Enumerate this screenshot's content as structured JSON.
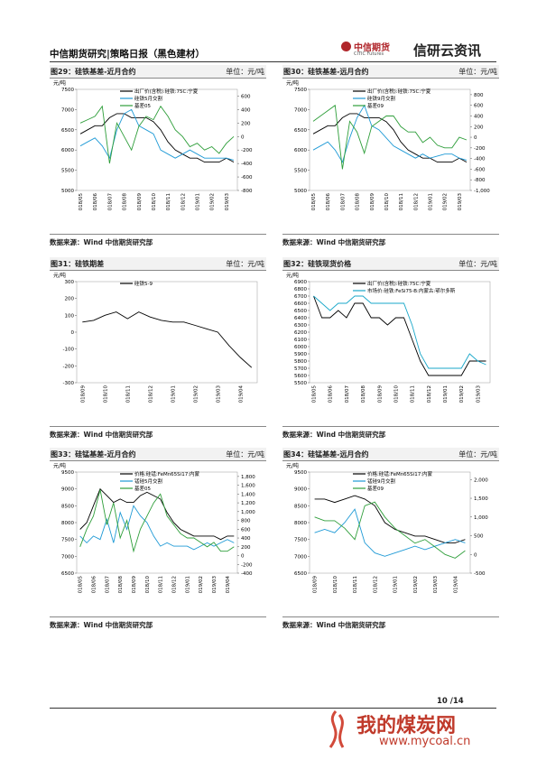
{
  "header": {
    "title": "中信期货研究|策略日报（黑色建材）",
    "logo": "中信期货",
    "logo_en": "CITIC Futures",
    "brand": "信研云资讯"
  },
  "footer": {
    "page": "10 /14"
  },
  "watermark": {
    "name": "我的煤炭网",
    "url": "www.mycoal.cn"
  },
  "chart_data": [
    {
      "type": "line",
      "title": "图29：硅铁基差-近月合约",
      "unit": "单位：元/吨",
      "y_label": "元/吨",
      "source": "数据来源：Wind  中信期货研究部",
      "categories": [
        "018/05",
        null,
        "018/06",
        null,
        "018/07",
        null,
        "018/08",
        null,
        "018/09",
        null,
        "018/10",
        null,
        "018/11",
        null,
        "018/12",
        null,
        "019/01",
        null,
        "019/02",
        null,
        "019/03",
        null
      ],
      "ylim": [
        5000,
        7500
      ],
      "yticks": [
        5000,
        5500,
        6000,
        6500,
        7000,
        7500
      ],
      "y2lim": [
        -800,
        700
      ],
      "y2ticks": [
        -800,
        -600,
        -400,
        -200,
        0,
        200,
        400,
        600
      ],
      "series": [
        {
          "name": "出厂价(含税):硅铁:75C:宁夏",
          "color": "#000000",
          "values": [
            6400,
            6500,
            6600,
            6600,
            6800,
            6900,
            6900,
            6800,
            6800,
            6800,
            6700,
            6500,
            6200,
            6000,
            5900,
            5800,
            5800,
            5700,
            5700,
            5700,
            5800,
            5700
          ]
        },
        {
          "name": "硅铁5月交割",
          "color": "#1f9ad6",
          "values": [
            6100,
            6200,
            6300,
            6100,
            5800,
            6500,
            6900,
            7000,
            6600,
            6500,
            6400,
            6000,
            5900,
            5800,
            5900,
            6000,
            5900,
            5800,
            5800,
            5800,
            5800,
            5750
          ]
        },
        {
          "name": "基差05",
          "color": "#2e9e3a",
          "axis": "y2",
          "values": [
            200,
            250,
            300,
            450,
            -400,
            200,
            0,
            -200,
            150,
            300,
            250,
            450,
            300,
            100,
            0,
            -150,
            -100,
            -200,
            -150,
            -250,
            -100,
            0
          ]
        }
      ]
    },
    {
      "type": "line",
      "title": "图30：硅铁基差-远月合约",
      "unit": "单位：元/吨",
      "y_label": "元/吨",
      "source": "数据来源：Wind  中信期货研究部",
      "categories": [
        "018/05",
        null,
        "018/06",
        null,
        "018/07",
        null,
        "018/08",
        null,
        "018/09",
        null,
        "018/10",
        null,
        "018/11",
        null,
        "018/12",
        null,
        "019/01",
        null,
        "019/02",
        null,
        "019/03",
        null
      ],
      "ylim": [
        5000,
        7500
      ],
      "yticks": [
        5000,
        5500,
        6000,
        6500,
        7000,
        7500
      ],
      "y2lim": [
        -1000,
        900
      ],
      "y2ticks": [
        {
          "value": -1000,
          "label": "-1,000"
        },
        -800,
        -600,
        -400,
        -200,
        0,
        200,
        400,
        600,
        800
      ],
      "series": [
        {
          "name": "出厂价(含税):硅铁:75C:宁夏",
          "color": "#000000",
          "values": [
            6400,
            6500,
            6600,
            6600,
            6800,
            6900,
            6900,
            6800,
            6800,
            6800,
            6700,
            6500,
            6200,
            6000,
            5900,
            5800,
            5800,
            5700,
            5700,
            5700,
            5800,
            5700
          ]
        },
        {
          "name": "硅铁9月交割",
          "color": "#1f9ad6",
          "values": [
            6000,
            6100,
            6200,
            6000,
            5700,
            6300,
            6800,
            7100,
            6600,
            6500,
            6300,
            6100,
            6000,
            5900,
            5800,
            5900,
            5800,
            5850,
            5900,
            5900,
            5800,
            5750
          ]
        },
        {
          "name": "基差09",
          "color": "#2e9e3a",
          "axis": "y2",
          "values": [
            300,
            400,
            500,
            600,
            -600,
            300,
            100,
            -300,
            200,
            300,
            400,
            400,
            200,
            100,
            100,
            -100,
            0,
            -150,
            -200,
            -200,
            0,
            -50
          ]
        }
      ]
    },
    {
      "type": "line",
      "title": "图31：硅铁期差",
      "unit": "单位：元/吨",
      "y_label": "元/吨",
      "source": "数据来源：Wind  中信期货研究部",
      "categories": [
        "018/09",
        null,
        "018/10",
        null,
        "018/11",
        null,
        "018/12",
        null,
        "019/01",
        null,
        "019/02",
        null,
        "019/03",
        null,
        "019/04",
        null
      ],
      "ylim": [
        -300,
        300
      ],
      "yticks": [
        -300,
        -200,
        -100,
        0,
        100,
        200,
        300
      ],
      "series": [
        {
          "name": "硅铁5-9",
          "color": "#000000",
          "values": [
            60,
            70,
            100,
            120,
            80,
            120,
            90,
            70,
            60,
            60,
            40,
            20,
            0,
            -80,
            -150,
            -210
          ]
        }
      ]
    },
    {
      "type": "line",
      "title": "图32：硅铁现货价格",
      "unit": "单位：元/吨",
      "y_label": "元/吨",
      "source": "数据来源：Wind  中信期货研究部",
      "categories": [
        "018/05",
        null,
        "018/06",
        null,
        "018/07",
        null,
        "018/08",
        null,
        "018/09",
        null,
        "018/10",
        null,
        "018/11",
        null,
        "018/12",
        null,
        "019/01",
        null,
        "019/02",
        null,
        "019/03",
        null
      ],
      "ylim": [
        5500,
        6900
      ],
      "yticks": [
        5500,
        5600,
        5700,
        5800,
        5900,
        6000,
        6100,
        6200,
        6300,
        6400,
        6500,
        6600,
        6700,
        6800,
        6900
      ],
      "series": [
        {
          "name": "出厂价(含税):硅铁:75C:宁夏",
          "color": "#000000",
          "values": [
            6700,
            6400,
            6400,
            6500,
            6400,
            6600,
            6600,
            6400,
            6400,
            6300,
            6400,
            6400,
            6100,
            5800,
            5600,
            5600,
            5600,
            5600,
            5600,
            5800,
            5800,
            5800
          ]
        },
        {
          "name": "市场价:硅铁:FeSi75-B:内蒙古:鄂尔多斯",
          "color": "#19a7c9",
          "values": [
            6700,
            6600,
            6500,
            6600,
            6600,
            6700,
            6700,
            6600,
            6600,
            6600,
            6600,
            6600,
            6300,
            5900,
            5700,
            5700,
            5700,
            5700,
            5700,
            5900,
            5800,
            5750
          ]
        }
      ]
    },
    {
      "type": "line",
      "title": "图33：硅锰基差-近月合约",
      "unit": "单位：元/吨",
      "y_label": "元/吨",
      "source": "数据来源：Wind  中信期货研究部",
      "categories": [
        "018/05",
        null,
        "018/06",
        null,
        "018/07",
        null,
        "018/08",
        null,
        "018/09",
        null,
        "018/10",
        null,
        "018/11",
        null,
        "018/12",
        null,
        "019/01",
        null,
        "019/02",
        null,
        "019/03",
        null,
        "019/04",
        null
      ],
      "ylim": [
        6500,
        9500
      ],
      "yticks": [
        6500,
        7000,
        7500,
        8000,
        8500,
        9000,
        9500
      ],
      "y2lim": [
        -400,
        1900
      ],
      "y2ticks": [
        -400,
        -200,
        0,
        200,
        400,
        600,
        800,
        {
          "value": 1000,
          "label": "1,000"
        },
        {
          "value": 1200,
          "label": "1,200"
        },
        {
          "value": 1400,
          "label": "1,400"
        },
        {
          "value": 1600,
          "label": "1,600"
        },
        {
          "value": 1800,
          "label": "1,800"
        }
      ],
      "series": [
        {
          "name": "价格:硅锰:FeMn65Si17:内蒙",
          "color": "#000000",
          "values": [
            7800,
            8000,
            8500,
            9000,
            8800,
            8600,
            8700,
            8600,
            8600,
            8800,
            8900,
            8800,
            8700,
            8300,
            8000,
            7800,
            7700,
            7600,
            7600,
            7600,
            7600,
            7500,
            7600,
            7600
          ]
        },
        {
          "name": "锰硅5月交割",
          "color": "#1f9ad6",
          "values": [
            7600,
            7400,
            7600,
            7500,
            8100,
            7400,
            8300,
            7800,
            8500,
            8200,
            8000,
            7600,
            7300,
            7400,
            7300,
            7300,
            7300,
            7200,
            7300,
            7400,
            7300,
            7400,
            7500,
            7400
          ]
        },
        {
          "name": "基差05",
          "color": "#2e9e3a",
          "axis": "y2",
          "values": [
            200,
            600,
            900,
            1500,
            700,
            1200,
            400,
            800,
            100,
            600,
            900,
            1200,
            1400,
            900,
            700,
            500,
            400,
            400,
            300,
            200,
            300,
            100,
            100,
            200
          ]
        }
      ]
    },
    {
      "type": "line",
      "title": "图34：硅锰基差-远月合约",
      "unit": "单位：元/吨",
      "y_label": "元/吨",
      "source": "数据来源：Wind  中信期货研究部",
      "categories": [
        "018/09",
        null,
        "018/10",
        null,
        "018/11",
        null,
        "018/12",
        null,
        "019/01",
        null,
        "019/02",
        null,
        "019/03",
        null,
        "019/04",
        null
      ],
      "ylim": [
        6500,
        9500
      ],
      "yticks": [
        6500,
        7000,
        7500,
        8000,
        8500,
        9000,
        9500
      ],
      "y2lim": [
        -500,
        2200
      ],
      "y2ticks": [
        -500,
        0,
        500,
        {
          "value": 1000,
          "label": "1,000"
        },
        {
          "value": 1500,
          "label": "1,500"
        },
        {
          "value": 2000,
          "label": "2,000"
        }
      ],
      "series": [
        {
          "name": "价格:硅锰:FeMn65Si17:内蒙",
          "color": "#000000",
          "values": [
            8700,
            8700,
            8600,
            8700,
            8800,
            8700,
            8500,
            8000,
            7800,
            7700,
            7600,
            7600,
            7500,
            7400,
            7400,
            7500
          ]
        },
        {
          "name": "锰硅9月交割",
          "color": "#1f9ad6",
          "values": [
            7700,
            7800,
            7700,
            8000,
            8400,
            7400,
            7100,
            7000,
            7100,
            7200,
            7300,
            7200,
            7300,
            7400,
            7500,
            7400
          ]
        },
        {
          "name": "基差09",
          "color": "#2e9e3a",
          "axis": "y2",
          "values": [
            1000,
            900,
            900,
            700,
            400,
            1300,
            1400,
            1000,
            700,
            500,
            300,
            400,
            200,
            0,
            -100,
            100
          ]
        }
      ]
    }
  ]
}
